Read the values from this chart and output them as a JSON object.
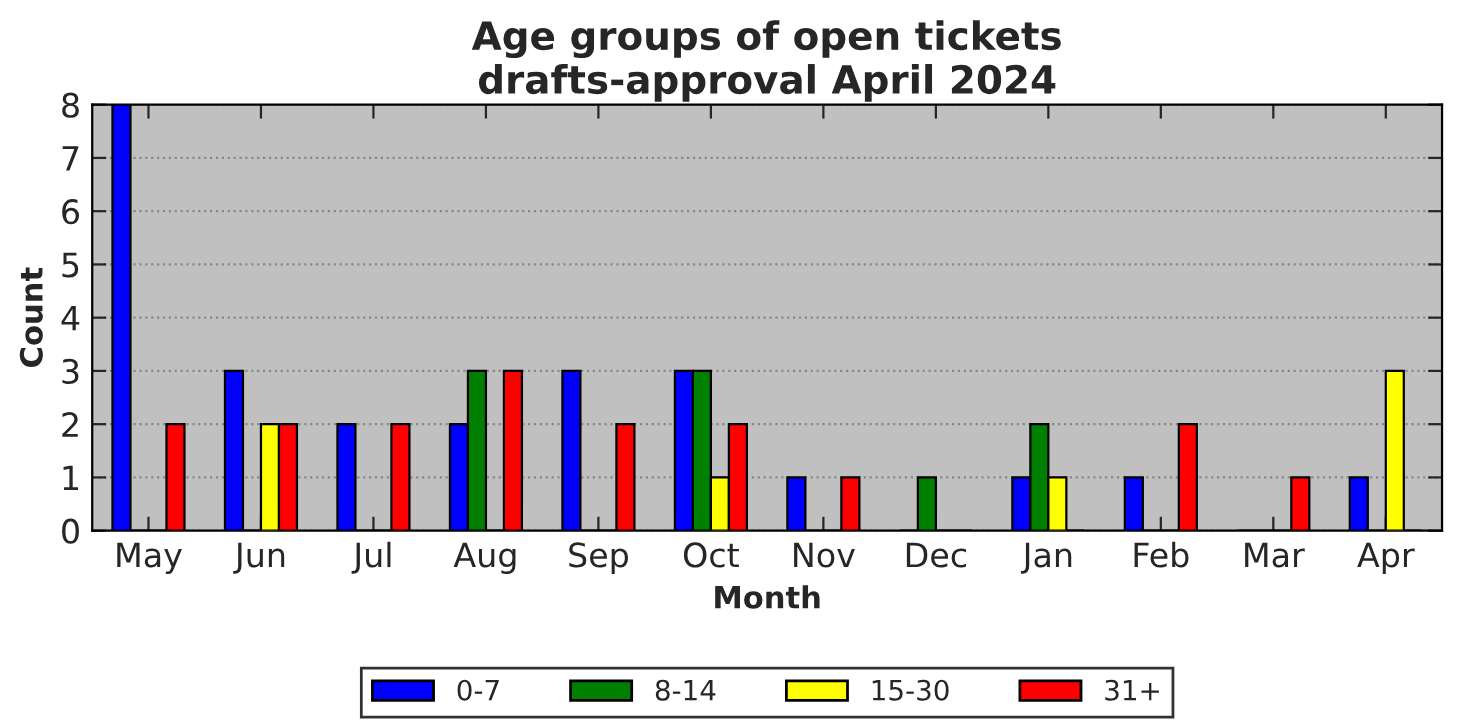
{
  "chart_data": {
    "type": "bar",
    "title": "Age groups of open tickets\ndrafts-approval April 2024",
    "xlabel": "Month",
    "ylabel": "Count",
    "categories": [
      "May",
      "Jun",
      "Jul",
      "Aug",
      "Sep",
      "Oct",
      "Nov",
      "Dec",
      "Jan",
      "Feb",
      "Mar",
      "Apr"
    ],
    "series": [
      {
        "name": "0-7",
        "color": "#0000ff",
        "values": [
          8,
          3,
          2,
          2,
          3,
          3,
          1,
          0,
          1,
          1,
          0,
          1
        ]
      },
      {
        "name": "8-14",
        "color": "#008000",
        "values": [
          0,
          0,
          0,
          3,
          0,
          3,
          0,
          1,
          2,
          0,
          0,
          0
        ]
      },
      {
        "name": "15-30",
        "color": "#ffff00",
        "values": [
          0,
          2,
          0,
          0,
          0,
          1,
          0,
          0,
          1,
          0,
          0,
          3
        ]
      },
      {
        "name": "31+",
        "color": "#ff0000",
        "values": [
          2,
          2,
          2,
          3,
          2,
          2,
          1,
          0,
          0,
          2,
          1,
          0
        ]
      }
    ],
    "ylim": [
      0,
      8
    ],
    "yticks": [
      0,
      1,
      2,
      3,
      4,
      5,
      6,
      7,
      8
    ],
    "grid": "y",
    "legend": "bottom"
  }
}
